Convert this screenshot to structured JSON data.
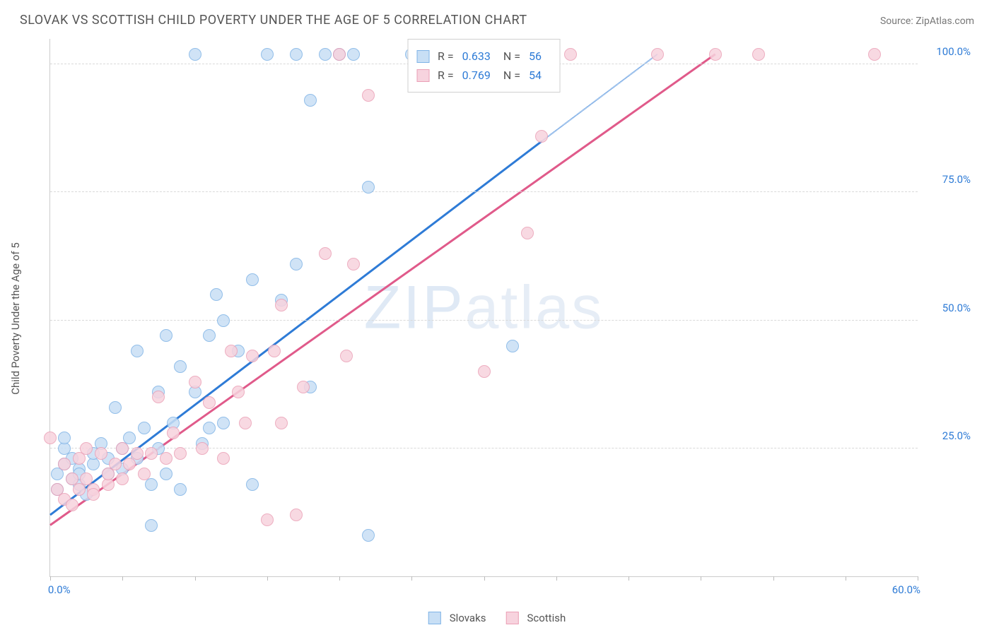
{
  "header": {
    "title": "SLOVAK VS SCOTTISH CHILD POVERTY UNDER THE AGE OF 5 CORRELATION CHART",
    "source": "Source: ZipAtlas.com"
  },
  "watermark": {
    "bold": "ZIP",
    "thin": "atlas"
  },
  "chart": {
    "type": "scatter",
    "y_axis_label": "Child Poverty Under the Age of 5",
    "xlim": [
      0,
      60
    ],
    "ylim": [
      0,
      105
    ],
    "x_tick_positions": [
      0,
      5,
      10,
      15,
      20,
      25,
      30,
      35,
      40,
      45,
      50,
      55,
      60
    ],
    "x_tick_labels": {
      "0": "0.0%",
      "60": "60.0%"
    },
    "y_ticks": [
      25,
      50,
      75,
      100
    ],
    "y_tick_labels": {
      "25": "25.0%",
      "50": "50.0%",
      "75": "75.0%",
      "100": "100.0%"
    },
    "background_color": "#ffffff",
    "grid_color": "#d9d9d9",
    "axis_color": "#cccccc",
    "point_radius": 9,
    "series": [
      {
        "key": "slovaks",
        "label": "Slovaks",
        "fill": "#c8dff5",
        "stroke": "#7fb3e6",
        "line_color": "#2e7bd6",
        "R": "0.633",
        "N": "56",
        "trend": {
          "x1": 0,
          "y1": 12,
          "x2": 34,
          "y2": 85,
          "dash_to_x": 42,
          "dash_to_y": 102
        },
        "points": [
          [
            0.5,
            20
          ],
          [
            0.5,
            17
          ],
          [
            1,
            22
          ],
          [
            1,
            25
          ],
          [
            1,
            27
          ],
          [
            1.5,
            19
          ],
          [
            1.5,
            23
          ],
          [
            2,
            18
          ],
          [
            2,
            21
          ],
          [
            2,
            20
          ],
          [
            2.5,
            16
          ],
          [
            3,
            22
          ],
          [
            3,
            24
          ],
          [
            3.5,
            26
          ],
          [
            4,
            20
          ],
          [
            4,
            23
          ],
          [
            4.5,
            33
          ],
          [
            5,
            25
          ],
          [
            5,
            21
          ],
          [
            5.5,
            27
          ],
          [
            6,
            44
          ],
          [
            6,
            23
          ],
          [
            6.5,
            29
          ],
          [
            7,
            18
          ],
          [
            7,
            10
          ],
          [
            7.5,
            36
          ],
          [
            7.5,
            25
          ],
          [
            8,
            47
          ],
          [
            8,
            20
          ],
          [
            8.5,
            30
          ],
          [
            9,
            17
          ],
          [
            9,
            41
          ],
          [
            10,
            102
          ],
          [
            10,
            36
          ],
          [
            10.5,
            26
          ],
          [
            11,
            47
          ],
          [
            11,
            29
          ],
          [
            11.5,
            55
          ],
          [
            12,
            50
          ],
          [
            12,
            30
          ],
          [
            13,
            44
          ],
          [
            14,
            58
          ],
          [
            14,
            18
          ],
          [
            15,
            102
          ],
          [
            16,
            54
          ],
          [
            17,
            61
          ],
          [
            17,
            102
          ],
          [
            18,
            37
          ],
          [
            18,
            93
          ],
          [
            19,
            102
          ],
          [
            20,
            102
          ],
          [
            21,
            102
          ],
          [
            22,
            76
          ],
          [
            22,
            8
          ],
          [
            25,
            102
          ],
          [
            32,
            45
          ]
        ]
      },
      {
        "key": "scottish",
        "label": "Scottish",
        "fill": "#f7d3de",
        "stroke": "#eba0b6",
        "line_color": "#e05a8a",
        "R": "0.769",
        "N": "54",
        "trend": {
          "x1": 0,
          "y1": 10,
          "x2": 46,
          "y2": 102,
          "dash_to_x": 46,
          "dash_to_y": 102
        },
        "points": [
          [
            0,
            27
          ],
          [
            0.5,
            17
          ],
          [
            1,
            15
          ],
          [
            1,
            22
          ],
          [
            1.5,
            19
          ],
          [
            1.5,
            14
          ],
          [
            2,
            17
          ],
          [
            2,
            23
          ],
          [
            2.5,
            19
          ],
          [
            2.5,
            25
          ],
          [
            3,
            17
          ],
          [
            3,
            16
          ],
          [
            3.5,
            24
          ],
          [
            4,
            18
          ],
          [
            4,
            20
          ],
          [
            4.5,
            22
          ],
          [
            5,
            25
          ],
          [
            5,
            19
          ],
          [
            5.5,
            22
          ],
          [
            6,
            24
          ],
          [
            6.5,
            20
          ],
          [
            7,
            24
          ],
          [
            7.5,
            35
          ],
          [
            8,
            23
          ],
          [
            8.5,
            28
          ],
          [
            9,
            24
          ],
          [
            10,
            38
          ],
          [
            10.5,
            25
          ],
          [
            11,
            34
          ],
          [
            12,
            23
          ],
          [
            12.5,
            44
          ],
          [
            13,
            36
          ],
          [
            13.5,
            30
          ],
          [
            14,
            43
          ],
          [
            15,
            11
          ],
          [
            15.5,
            44
          ],
          [
            16,
            30
          ],
          [
            16,
            53
          ],
          [
            17,
            12
          ],
          [
            17.5,
            37
          ],
          [
            19,
            63
          ],
          [
            20,
            102
          ],
          [
            20.5,
            43
          ],
          [
            21,
            61
          ],
          [
            22,
            94
          ],
          [
            27,
            102
          ],
          [
            30,
            40
          ],
          [
            33,
            67
          ],
          [
            34,
            86
          ],
          [
            36,
            102
          ],
          [
            42,
            102
          ],
          [
            46,
            102
          ],
          [
            49,
            102
          ],
          [
            57,
            102
          ]
        ]
      }
    ]
  }
}
